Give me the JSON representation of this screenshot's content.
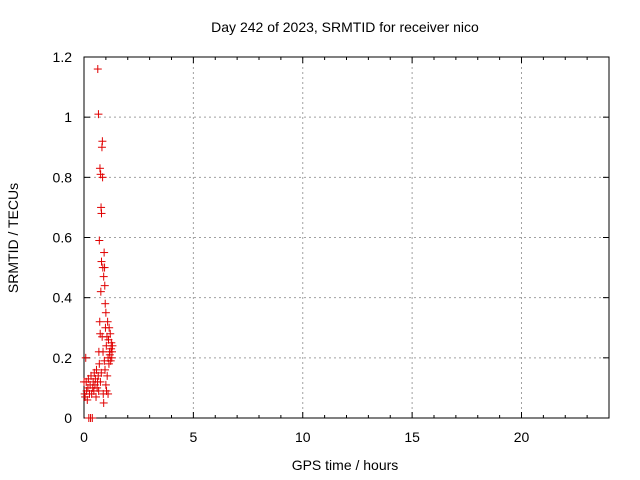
{
  "chart_data": {
    "type": "scatter",
    "title": "Day 242 of 2023, SRMTID for receiver nico",
    "xlabel": "GPS time / hours",
    "ylabel": "SRMTID / TECUs",
    "xlim": [
      0,
      24
    ],
    "ylim": [
      0,
      1.2
    ],
    "xticks": [
      0,
      5,
      10,
      15,
      20
    ],
    "xtick_labels": [
      "0",
      "5",
      "10",
      "15",
      "20"
    ],
    "yticks": [
      0,
      0.2,
      0.4,
      0.6,
      0.8,
      1.0,
      1.2
    ],
    "ytick_labels": [
      "0",
      "0.2",
      "0.4",
      "0.6",
      "0.8",
      "1",
      "1.2"
    ],
    "grid": true,
    "marker": "+",
    "color": "#e00000",
    "series": [
      {
        "name": "nico",
        "points": [
          [
            0.0,
            0.12
          ],
          [
            0.03,
            0.08
          ],
          [
            0.05,
            0.07
          ],
          [
            0.08,
            0.2
          ],
          [
            0.1,
            0.12
          ],
          [
            0.12,
            0.09
          ],
          [
            0.15,
            0.06
          ],
          [
            0.18,
            0.1
          ],
          [
            0.2,
            0.13
          ],
          [
            0.22,
            0.0
          ],
          [
            0.25,
            0.08
          ],
          [
            0.28,
            0.11
          ],
          [
            0.3,
            0.0
          ],
          [
            0.32,
            0.14
          ],
          [
            0.35,
            0.08
          ],
          [
            0.38,
            0.0
          ],
          [
            0.4,
            0.1
          ],
          [
            0.42,
            0.12
          ],
          [
            0.45,
            0.09
          ],
          [
            0.47,
            0.15
          ],
          [
            0.5,
            0.11
          ],
          [
            0.52,
            0.13
          ],
          [
            0.55,
            0.07
          ],
          [
            0.57,
            0.16
          ],
          [
            0.6,
            0.1
          ],
          [
            0.62,
            0.12
          ],
          [
            0.63,
            1.16
          ],
          [
            0.65,
            0.14
          ],
          [
            0.66,
            1.01
          ],
          [
            0.67,
            0.09
          ],
          [
            0.68,
            0.22
          ],
          [
            0.7,
            0.18
          ],
          [
            0.7,
            0.59
          ],
          [
            0.72,
            0.32
          ],
          [
            0.73,
            0.83
          ],
          [
            0.74,
            0.28
          ],
          [
            0.75,
            0.12
          ],
          [
            0.76,
            0.81
          ],
          [
            0.77,
            0.42
          ],
          [
            0.78,
            0.7
          ],
          [
            0.79,
            0.15
          ],
          [
            0.8,
            0.68
          ],
          [
            0.8,
            0.52
          ],
          [
            0.82,
            0.9
          ],
          [
            0.83,
            0.27
          ],
          [
            0.84,
            0.92
          ],
          [
            0.85,
            0.8
          ],
          [
            0.86,
            0.5
          ],
          [
            0.87,
            0.22
          ],
          [
            0.88,
            0.08
          ],
          [
            0.9,
            0.47
          ],
          [
            0.9,
            0.05
          ],
          [
            0.92,
            0.55
          ],
          [
            0.93,
            0.19
          ],
          [
            0.94,
            0.5
          ],
          [
            0.95,
            0.44
          ],
          [
            0.96,
            0.16
          ],
          [
            0.97,
            0.38
          ],
          [
            0.98,
            0.3
          ],
          [
            1.0,
            0.35
          ],
          [
            1.0,
            0.11
          ],
          [
            1.02,
            0.24
          ],
          [
            1.03,
            0.09
          ],
          [
            1.05,
            0.27
          ],
          [
            1.06,
            0.14
          ],
          [
            1.08,
            0.32
          ],
          [
            1.1,
            0.2
          ],
          [
            1.1,
            0.08
          ],
          [
            1.12,
            0.26
          ],
          [
            1.14,
            0.18
          ],
          [
            1.15,
            0.3
          ],
          [
            1.17,
            0.22
          ],
          [
            1.18,
            0.21
          ],
          [
            1.2,
            0.28
          ],
          [
            1.22,
            0.19
          ],
          [
            1.24,
            0.23
          ],
          [
            1.25,
            0.25
          ],
          [
            1.27,
            0.2
          ],
          [
            1.28,
            0.22
          ],
          [
            1.3,
            0.24
          ]
        ]
      }
    ]
  }
}
